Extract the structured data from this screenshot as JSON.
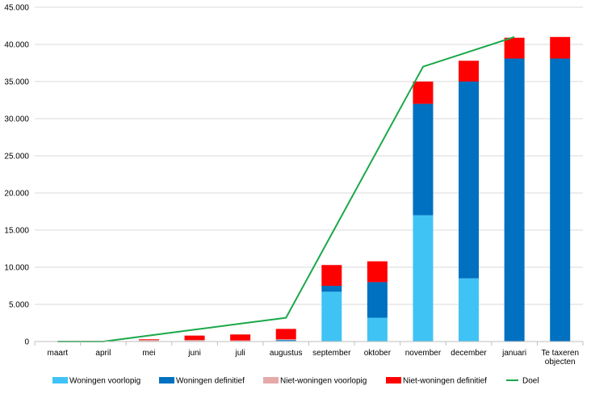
{
  "chart_data": {
    "type": "bar",
    "stacked": true,
    "title": "",
    "xlabel": "",
    "ylabel": "",
    "ylim": [
      0,
      45000
    ],
    "y_ticks": [
      0,
      5000,
      10000,
      15000,
      20000,
      25000,
      30000,
      35000,
      40000,
      45000
    ],
    "y_tick_labels": [
      "0",
      "5.000",
      "10.000",
      "15.000",
      "20.000",
      "25.000",
      "30.000",
      "35.000",
      "40.000",
      "45.000"
    ],
    "categories": [
      [
        "maart"
      ],
      [
        "april"
      ],
      [
        "mei"
      ],
      [
        "juni"
      ],
      [
        "juli"
      ],
      [
        "augustus"
      ],
      [
        "september"
      ],
      [
        "oktober"
      ],
      [
        "november"
      ],
      [
        "december"
      ],
      [
        "januari"
      ],
      [
        "Te taxeren",
        "objecten"
      ]
    ],
    "grid": true,
    "legend_position": "bottom",
    "series": [
      {
        "name": "Woningen voorlopig",
        "type": "bar",
        "color": "#3FC3F5",
        "values": [
          0,
          0,
          0,
          0,
          0,
          100,
          6700,
          3200,
          17000,
          8500,
          0,
          0
        ]
      },
      {
        "name": "Woningen definitief",
        "type": "bar",
        "color": "#0070C0",
        "values": [
          0,
          0,
          0,
          0,
          0,
          100,
          800,
          4800,
          15000,
          26500,
          38100,
          38100
        ]
      },
      {
        "name": "Niet-woningen voorlopig",
        "type": "bar",
        "color": "#E6A9A9",
        "values": [
          0,
          0,
          200,
          200,
          150,
          100,
          0,
          0,
          0,
          0,
          0,
          0
        ]
      },
      {
        "name": "Niet-woningen definitief",
        "type": "bar",
        "color": "#FF0000",
        "values": [
          0,
          0,
          100,
          600,
          800,
          1400,
          2800,
          2800,
          3000,
          2800,
          2800,
          2900
        ]
      },
      {
        "name": "Doel",
        "type": "line",
        "color": "#1BA84A",
        "values": [
          0,
          0,
          800,
          1600,
          2400,
          3200,
          null,
          null,
          37000,
          null,
          41000,
          null
        ]
      }
    ]
  }
}
